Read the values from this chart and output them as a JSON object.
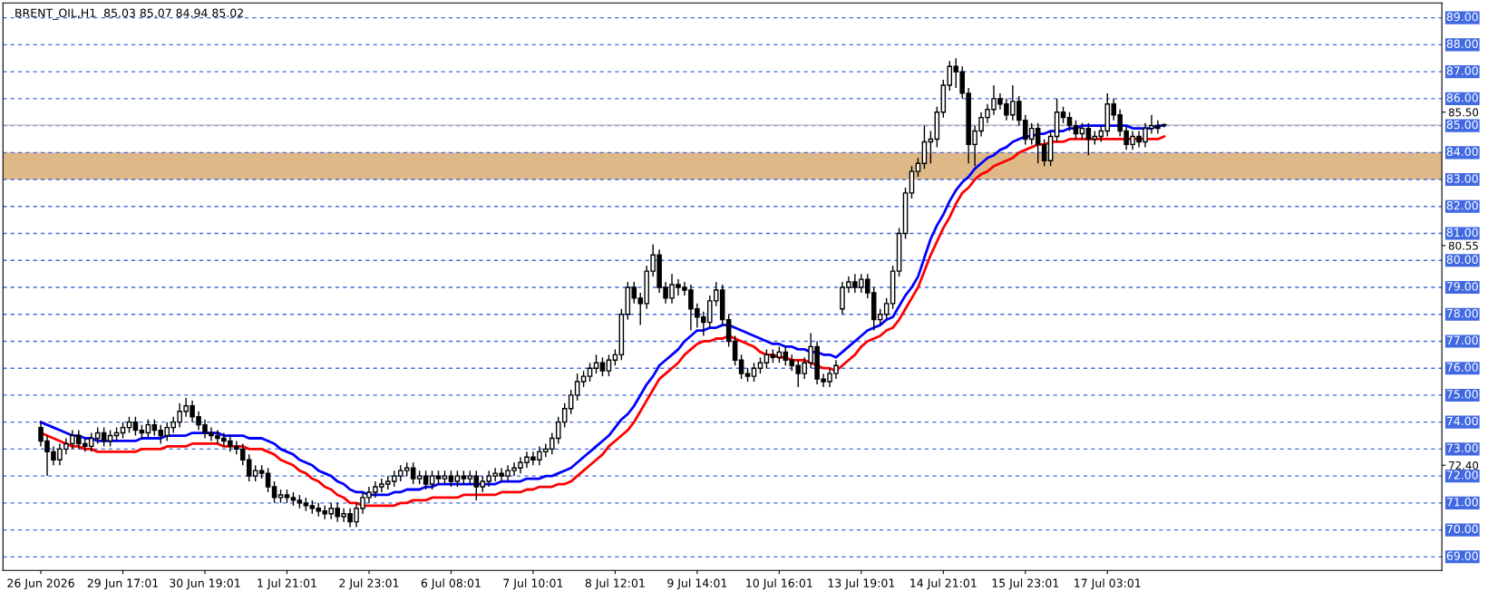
{
  "chart_data": {
    "type": "candlestick",
    "title": "BRENT_OIL,H1  85.03 85.07 84.94 85.02",
    "categories": [
      "26 Jun 2026",
      null,
      null,
      null,
      null,
      null,
      null,
      null,
      null,
      null,
      null,
      null,
      null,
      "29 Jun 17:01",
      null,
      null,
      null,
      null,
      null,
      null,
      null,
      null,
      null,
      null,
      null,
      null,
      "30 Jun 19:01",
      null,
      null,
      null,
      null,
      null,
      null,
      null,
      null,
      null,
      null,
      null,
      null,
      "1 Jul 21:01",
      null,
      null,
      null,
      null,
      null,
      null,
      null,
      null,
      null,
      null,
      null,
      null,
      "2 Jul 23:01",
      null,
      null,
      null,
      null,
      null,
      null,
      null,
      null,
      null,
      null,
      null,
      null,
      "6 Jul 08:01",
      null,
      null,
      null,
      null,
      null,
      null,
      null,
      null,
      null,
      null,
      null,
      null,
      "7 Jul 10:01",
      null,
      null,
      null,
      null,
      null,
      null,
      null,
      null,
      null,
      null,
      null,
      null,
      "8 Jul 12:01",
      null,
      null,
      null,
      null,
      null,
      null,
      null,
      null,
      null,
      null,
      null,
      null,
      "9 Jul 14:01",
      null,
      null,
      null,
      null,
      null,
      null,
      null,
      null,
      null,
      null,
      null,
      null,
      "10 Jul 16:01",
      null,
      null,
      null,
      null,
      null,
      null,
      null,
      null,
      null,
      null,
      null,
      null,
      "13 Jul 19:01",
      null,
      null,
      null,
      null,
      null,
      null,
      null,
      null,
      null,
      null,
      null,
      null,
      "14 Jul 21:01",
      null,
      null,
      null,
      null,
      null,
      null,
      null,
      null,
      null,
      null,
      null,
      null,
      "15 Jul 23:01",
      null,
      null,
      null,
      null,
      null,
      null,
      null,
      null,
      null,
      null,
      null,
      null,
      "17 Jul 03:01",
      null,
      null,
      null,
      null,
      null,
      null,
      null,
      null,
      null
    ],
    "ohlc": [
      [
        73.8,
        74.0,
        73.1,
        73.3
      ],
      [
        73.3,
        73.5,
        72.0,
        72.9
      ],
      [
        72.9,
        73.1,
        72.4,
        72.6
      ],
      [
        72.6,
        73.2,
        72.4,
        73.0
      ],
      [
        73.0,
        73.4,
        72.8,
        73.2
      ],
      [
        73.2,
        73.7,
        73.0,
        73.5
      ],
      [
        73.5,
        73.7,
        73.0,
        73.2
      ],
      [
        73.2,
        73.4,
        72.9,
        73.1
      ],
      [
        73.1,
        73.6,
        72.9,
        73.4
      ],
      [
        73.4,
        73.8,
        73.2,
        73.6
      ],
      [
        73.6,
        73.8,
        73.1,
        73.3
      ],
      [
        73.3,
        73.7,
        73.1,
        73.5
      ],
      [
        73.5,
        73.8,
        73.3,
        73.6
      ],
      [
        73.6,
        74.0,
        73.4,
        73.8
      ],
      [
        73.8,
        74.2,
        73.6,
        74.0
      ],
      [
        74.0,
        74.2,
        73.5,
        73.7
      ],
      [
        73.7,
        73.9,
        73.4,
        73.6
      ],
      [
        73.6,
        74.1,
        73.4,
        73.9
      ],
      [
        73.9,
        74.1,
        73.5,
        73.7
      ],
      [
        73.7,
        73.9,
        73.2,
        73.5
      ],
      [
        73.5,
        74.0,
        73.3,
        73.8
      ],
      [
        73.8,
        74.2,
        73.6,
        74.0
      ],
      [
        74.0,
        74.7,
        73.8,
        74.4
      ],
      [
        74.4,
        74.9,
        74.2,
        74.6
      ],
      [
        74.6,
        74.8,
        74.0,
        74.2
      ],
      [
        74.2,
        74.4,
        73.7,
        73.9
      ],
      [
        73.9,
        74.1,
        73.4,
        73.6
      ],
      [
        73.6,
        73.8,
        73.3,
        73.5
      ],
      [
        73.5,
        73.7,
        73.2,
        73.4
      ],
      [
        73.4,
        73.6,
        73.1,
        73.3
      ],
      [
        73.3,
        73.5,
        72.9,
        73.1
      ],
      [
        73.1,
        73.3,
        72.8,
        73.0
      ],
      [
        73.0,
        73.2,
        72.4,
        72.6
      ],
      [
        72.6,
        72.8,
        71.8,
        72.0
      ],
      [
        72.0,
        72.4,
        71.8,
        72.2
      ],
      [
        72.2,
        72.4,
        71.9,
        72.1
      ],
      [
        72.1,
        72.3,
        71.4,
        71.6
      ],
      [
        71.6,
        71.8,
        71.0,
        71.2
      ],
      [
        71.2,
        71.5,
        71.0,
        71.3
      ],
      [
        71.3,
        71.5,
        71.0,
        71.2
      ],
      [
        71.2,
        71.4,
        70.9,
        71.1
      ],
      [
        71.1,
        71.3,
        70.8,
        71.0
      ],
      [
        71.0,
        71.2,
        70.7,
        70.9
      ],
      [
        70.9,
        71.1,
        70.6,
        70.8
      ],
      [
        70.8,
        71.0,
        70.5,
        70.7
      ],
      [
        70.7,
        70.9,
        70.4,
        70.6
      ],
      [
        70.6,
        71.0,
        70.4,
        70.8
      ],
      [
        70.8,
        71.0,
        70.3,
        70.5
      ],
      [
        70.5,
        70.8,
        70.3,
        70.6
      ],
      [
        70.6,
        70.8,
        70.1,
        70.3
      ],
      [
        70.3,
        71.0,
        70.1,
        70.8
      ],
      [
        70.8,
        71.4,
        70.6,
        71.2
      ],
      [
        71.2,
        71.6,
        71.0,
        71.4
      ],
      [
        71.4,
        71.8,
        71.2,
        71.6
      ],
      [
        71.6,
        71.9,
        71.4,
        71.7
      ],
      [
        71.7,
        72.0,
        71.5,
        71.8
      ],
      [
        71.8,
        72.2,
        71.6,
        72.0
      ],
      [
        72.0,
        72.4,
        71.8,
        72.2
      ],
      [
        72.2,
        72.5,
        72.0,
        72.3
      ],
      [
        72.3,
        72.5,
        71.7,
        71.9
      ],
      [
        71.9,
        72.2,
        71.7,
        72.0
      ],
      [
        72.0,
        72.2,
        71.5,
        71.7
      ],
      [
        71.7,
        72.2,
        71.5,
        72.0
      ],
      [
        72.0,
        72.2,
        71.7,
        71.9
      ],
      [
        71.9,
        72.2,
        71.7,
        72.0
      ],
      [
        72.0,
        72.2,
        71.6,
        71.8
      ],
      [
        71.8,
        72.2,
        71.6,
        72.0
      ],
      [
        72.0,
        72.2,
        71.7,
        71.9
      ],
      [
        71.9,
        72.2,
        71.7,
        72.0
      ],
      [
        72.0,
        72.2,
        71.1,
        71.6
      ],
      [
        71.6,
        72.0,
        71.4,
        71.8
      ],
      [
        71.8,
        72.2,
        71.6,
        72.0
      ],
      [
        72.0,
        72.3,
        71.8,
        72.1
      ],
      [
        72.1,
        72.3,
        71.8,
        72.0
      ],
      [
        72.0,
        72.4,
        71.8,
        72.2
      ],
      [
        72.2,
        72.5,
        72.0,
        72.3
      ],
      [
        72.3,
        72.7,
        72.1,
        72.5
      ],
      [
        72.5,
        72.9,
        72.3,
        72.7
      ],
      [
        72.7,
        72.9,
        72.4,
        72.6
      ],
      [
        72.6,
        73.1,
        72.4,
        72.9
      ],
      [
        72.9,
        73.2,
        72.7,
        73.0
      ],
      [
        73.0,
        73.6,
        72.8,
        73.4
      ],
      [
        73.4,
        74.2,
        73.2,
        74.0
      ],
      [
        74.0,
        74.7,
        73.8,
        74.5
      ],
      [
        74.5,
        75.2,
        74.3,
        75.0
      ],
      [
        75.0,
        75.8,
        74.8,
        75.5
      ],
      [
        75.5,
        75.9,
        75.3,
        75.7
      ],
      [
        75.7,
        76.2,
        75.5,
        76.0
      ],
      [
        76.0,
        76.5,
        75.8,
        76.2
      ],
      [
        76.2,
        76.4,
        75.7,
        75.9
      ],
      [
        75.9,
        76.5,
        75.7,
        76.3
      ],
      [
        76.3,
        76.7,
        76.1,
        76.5
      ],
      [
        76.5,
        78.2,
        76.3,
        78.0
      ],
      [
        78.0,
        79.2,
        77.8,
        79.0
      ],
      [
        79.0,
        79.2,
        78.4,
        78.6
      ],
      [
        78.6,
        78.8,
        77.6,
        78.4
      ],
      [
        78.4,
        79.8,
        78.2,
        79.6
      ],
      [
        79.6,
        80.6,
        79.4,
        80.2
      ],
      [
        80.2,
        80.4,
        78.8,
        79.0
      ],
      [
        79.0,
        79.2,
        78.4,
        78.6
      ],
      [
        78.6,
        79.5,
        78.4,
        79.1
      ],
      [
        79.1,
        79.3,
        78.7,
        79.0
      ],
      [
        79.0,
        79.2,
        78.7,
        78.9
      ],
      [
        78.9,
        79.1,
        77.4,
        78.2
      ],
      [
        78.2,
        78.4,
        77.5,
        77.9
      ],
      [
        77.9,
        78.1,
        77.2,
        77.7
      ],
      [
        77.7,
        78.7,
        77.5,
        78.5
      ],
      [
        78.5,
        79.2,
        78.3,
        78.9
      ],
      [
        78.9,
        79.1,
        77.6,
        77.8
      ],
      [
        77.8,
        78.0,
        76.8,
        77.0
      ],
      [
        77.0,
        77.2,
        76.1,
        76.3
      ],
      [
        76.3,
        76.5,
        75.6,
        75.8
      ],
      [
        75.8,
        76.0,
        75.5,
        75.7
      ],
      [
        75.7,
        76.2,
        75.5,
        76.0
      ],
      [
        76.0,
        76.4,
        75.8,
        76.2
      ],
      [
        76.2,
        76.7,
        76.0,
        76.5
      ],
      [
        76.5,
        76.7,
        76.2,
        76.4
      ],
      [
        76.4,
        76.8,
        76.2,
        76.6
      ],
      [
        76.6,
        76.8,
        76.1,
        76.3
      ],
      [
        76.3,
        76.5,
        75.9,
        76.1
      ],
      [
        76.1,
        76.3,
        75.3,
        75.8
      ],
      [
        75.8,
        76.4,
        75.6,
        76.2
      ],
      [
        76.2,
        77.3,
        76.0,
        76.8
      ],
      [
        76.8,
        77.0,
        75.4,
        75.6
      ],
      [
        75.6,
        75.8,
        75.3,
        75.5
      ],
      [
        75.5,
        76.0,
        75.3,
        75.8
      ],
      [
        75.8,
        76.3,
        75.6,
        76.1
      ],
      [
        78.2,
        79.2,
        78.0,
        79.0
      ],
      [
        79.0,
        79.4,
        78.8,
        79.2
      ],
      [
        79.2,
        79.5,
        78.8,
        79.0
      ],
      [
        79.0,
        79.5,
        78.8,
        79.3
      ],
      [
        79.3,
        79.5,
        78.6,
        78.8
      ],
      [
        78.8,
        79.0,
        77.4,
        77.8
      ],
      [
        77.8,
        78.2,
        77.6,
        78.0
      ],
      [
        78.0,
        78.6,
        77.8,
        78.4
      ],
      [
        78.4,
        79.8,
        78.2,
        79.6
      ],
      [
        79.6,
        81.2,
        79.4,
        81.0
      ],
      [
        81.0,
        82.7,
        80.8,
        82.5
      ],
      [
        82.5,
        83.5,
        82.3,
        83.3
      ],
      [
        83.3,
        83.8,
        83.1,
        83.6
      ],
      [
        83.6,
        85.0,
        83.4,
        84.4
      ],
      [
        84.4,
        84.8,
        83.6,
        84.5
      ],
      [
        84.5,
        85.7,
        84.2,
        85.5
      ],
      [
        85.5,
        86.7,
        85.3,
        86.5
      ],
      [
        86.5,
        87.4,
        86.3,
        87.2
      ],
      [
        87.2,
        87.5,
        86.4,
        87.0
      ],
      [
        87.0,
        87.2,
        86.0,
        86.2
      ],
      [
        86.2,
        86.4,
        83.6,
        84.3
      ],
      [
        84.3,
        85.0,
        83.5,
        84.8
      ],
      [
        84.8,
        85.5,
        84.6,
        85.3
      ],
      [
        85.3,
        85.8,
        85.1,
        85.6
      ],
      [
        85.6,
        86.5,
        85.4,
        86.0
      ],
      [
        86.0,
        86.2,
        85.6,
        85.8
      ],
      [
        85.8,
        86.0,
        85.2,
        85.4
      ],
      [
        85.4,
        86.5,
        85.2,
        85.9
      ],
      [
        85.9,
        86.1,
        85.0,
        85.2
      ],
      [
        85.2,
        85.4,
        84.3,
        84.5
      ],
      [
        84.5,
        85.1,
        84.3,
        84.9
      ],
      [
        84.9,
        85.1,
        83.6,
        84.3
      ],
      [
        84.3,
        84.5,
        83.5,
        83.7
      ],
      [
        83.7,
        84.8,
        83.5,
        84.6
      ],
      [
        84.6,
        86.0,
        84.4,
        85.5
      ],
      [
        85.5,
        85.7,
        85.1,
        85.3
      ],
      [
        85.3,
        85.5,
        84.8,
        85.0
      ],
      [
        85.0,
        85.2,
        84.5,
        84.7
      ],
      [
        84.7,
        85.1,
        84.5,
        84.9
      ],
      [
        84.9,
        85.1,
        83.9,
        84.5
      ],
      [
        84.5,
        84.8,
        84.3,
        84.6
      ],
      [
        84.6,
        85.0,
        84.4,
        84.8
      ],
      [
        84.8,
        86.2,
        84.6,
        85.8
      ],
      [
        85.8,
        86.0,
        85.2,
        85.4
      ],
      [
        85.4,
        85.6,
        84.6,
        84.8
      ],
      [
        84.8,
        85.0,
        84.1,
        84.3
      ],
      [
        84.3,
        84.8,
        84.1,
        84.6
      ],
      [
        84.6,
        84.8,
        84.2,
        84.4
      ],
      [
        84.4,
        85.1,
        84.2,
        84.9
      ],
      [
        84.9,
        85.4,
        84.7,
        85.0
      ],
      [
        85.0,
        85.2,
        84.7,
        84.9
      ],
      [
        85.03,
        85.07,
        84.94,
        85.02
      ]
    ],
    "series": [
      {
        "type": "line",
        "color": "#0000ff",
        "values": [
          74.0,
          73.9,
          73.8,
          73.7,
          73.6,
          73.5,
          73.5,
          73.4,
          73.4,
          73.3,
          73.3,
          73.3,
          73.3,
          73.3,
          73.3,
          73.3,
          73.4,
          73.4,
          73.4,
          73.4,
          73.5,
          73.5,
          73.5,
          73.5,
          73.6,
          73.6,
          73.6,
          73.6,
          73.6,
          73.5,
          73.5,
          73.5,
          73.5,
          73.4,
          73.4,
          73.4,
          73.3,
          73.2,
          73.0,
          72.9,
          72.8,
          72.6,
          72.5,
          72.4,
          72.2,
          72.1,
          72.0,
          71.8,
          71.7,
          71.5,
          71.4,
          71.4,
          71.3,
          71.3,
          71.3,
          71.3,
          71.4,
          71.4,
          71.5,
          71.5,
          71.5,
          71.6,
          71.6,
          71.7,
          71.7,
          71.7,
          71.7,
          71.7,
          71.7,
          71.7,
          71.7,
          71.7,
          71.7,
          71.8,
          71.8,
          71.8,
          71.8,
          71.9,
          71.9,
          71.9,
          72.0,
          72.0,
          72.1,
          72.2,
          72.3,
          72.5,
          72.7,
          72.9,
          73.1,
          73.3,
          73.5,
          73.8,
          74.1,
          74.3,
          74.6,
          75.0,
          75.4,
          75.7,
          76.1,
          76.3,
          76.5,
          76.7,
          77.0,
          77.2,
          77.4,
          77.4,
          77.5,
          77.5,
          77.6,
          77.6,
          77.5,
          77.4,
          77.3,
          77.2,
          77.1,
          77.0,
          76.9,
          76.9,
          76.8,
          76.8,
          76.7,
          76.7,
          76.6,
          76.6,
          76.5,
          76.5,
          76.4,
          76.6,
          76.8,
          77.0,
          77.2,
          77.4,
          77.5,
          77.6,
          77.8,
          77.9,
          78.3,
          78.7,
          79.0,
          79.4,
          80.1,
          80.8,
          81.3,
          81.7,
          82.2,
          82.6,
          82.9,
          83.1,
          83.4,
          83.6,
          83.8,
          83.9,
          84.1,
          84.2,
          84.4,
          84.5,
          84.6,
          84.6,
          84.7,
          84.7,
          84.8,
          84.8,
          84.8,
          84.9,
          84.9,
          85.0,
          85.0,
          85.0,
          85.0,
          85.0,
          85.0,
          85.0,
          85.0,
          84.9,
          84.9,
          84.9,
          84.9,
          85.0,
          85.0
        ]
      },
      {
        "type": "line",
        "color": "#ff0000",
        "values": [
          73.6,
          73.5,
          73.4,
          73.3,
          73.2,
          73.1,
          73.1,
          73.0,
          73.0,
          72.9,
          72.9,
          72.9,
          72.9,
          72.9,
          72.9,
          72.9,
          73.0,
          73.0,
          73.0,
          73.0,
          73.1,
          73.1,
          73.1,
          73.1,
          73.2,
          73.2,
          73.2,
          73.2,
          73.2,
          73.1,
          73.1,
          73.1,
          73.1,
          73.0,
          73.0,
          73.0,
          72.9,
          72.8,
          72.6,
          72.5,
          72.4,
          72.2,
          72.1,
          71.9,
          71.8,
          71.6,
          71.5,
          71.3,
          71.2,
          71.0,
          71.0,
          70.9,
          70.9,
          70.9,
          70.9,
          70.9,
          70.9,
          71.0,
          71.0,
          71.1,
          71.1,
          71.1,
          71.2,
          71.2,
          71.2,
          71.2,
          71.2,
          71.3,
          71.3,
          71.3,
          71.3,
          71.3,
          71.3,
          71.4,
          71.4,
          71.4,
          71.4,
          71.5,
          71.5,
          71.6,
          71.6,
          71.6,
          71.7,
          71.7,
          71.8,
          72.0,
          72.2,
          72.4,
          72.6,
          72.8,
          73.1,
          73.3,
          73.5,
          73.7,
          74.0,
          74.4,
          74.8,
          75.2,
          75.6,
          75.8,
          76.0,
          76.2,
          76.5,
          76.7,
          76.9,
          77.0,
          77.0,
          77.1,
          77.1,
          77.2,
          77.1,
          77.0,
          76.9,
          76.8,
          76.6,
          76.5,
          76.5,
          76.4,
          76.4,
          76.3,
          76.3,
          76.3,
          76.2,
          76.1,
          76.0,
          76.0,
          75.9,
          76.1,
          76.3,
          76.5,
          76.8,
          77.0,
          77.1,
          77.2,
          77.4,
          77.5,
          77.8,
          78.2,
          78.6,
          79.0,
          79.6,
          80.2,
          80.7,
          81.2,
          81.6,
          82.1,
          82.5,
          82.7,
          83.0,
          83.2,
          83.3,
          83.5,
          83.6,
          83.7,
          83.8,
          84.0,
          84.1,
          84.2,
          84.3,
          84.3,
          84.4,
          84.4,
          84.4,
          84.5,
          84.5,
          84.5,
          84.5,
          84.5,
          84.5,
          84.5,
          84.5,
          84.5,
          84.5,
          84.5,
          84.5,
          84.5,
          84.5,
          84.5,
          84.6
        ]
      }
    ],
    "ylim": [
      68.5,
      89.55
    ],
    "yticks": [
      {
        "value": 85.5,
        "label": "85.50"
      },
      {
        "value": 80.55,
        "label": "80.55"
      },
      {
        "value": 72.4,
        "label": "72.40"
      }
    ],
    "ref_lines": [
      {
        "axis": "y",
        "value": 89,
        "label": "89.00",
        "color": "#4169e1",
        "line_style": "dashed"
      },
      {
        "axis": "y",
        "value": 88,
        "label": "88.00",
        "color": "#4169e1",
        "line_style": "dashed"
      },
      {
        "axis": "y",
        "value": 87,
        "label": "87.00",
        "color": "#4169e1",
        "line_style": "dashed"
      },
      {
        "axis": "y",
        "value": 86,
        "label": "86.00",
        "color": "#4169e1",
        "line_style": "dashed"
      },
      {
        "axis": "y",
        "value": 85,
        "label": "85.00",
        "color": "#4169e1",
        "line_style": "dashed"
      },
      {
        "axis": "y",
        "value": 84,
        "label": "84.00",
        "color": "#4169e1",
        "line_style": "dashed"
      },
      {
        "axis": "y",
        "value": 83,
        "label": "83.00",
        "color": "#4169e1",
        "line_style": "dashed"
      },
      {
        "axis": "y",
        "value": 82,
        "label": "82.00",
        "color": "#4169e1",
        "line_style": "dashed"
      },
      {
        "axis": "y",
        "value": 81,
        "label": "81.00",
        "color": "#4169e1",
        "line_style": "dashed"
      },
      {
        "axis": "y",
        "value": 80,
        "label": "80.00",
        "color": "#4169e1",
        "line_style": "dashed"
      },
      {
        "axis": "y",
        "value": 79,
        "label": "79.00",
        "color": "#4169e1",
        "line_style": "dashed"
      },
      {
        "axis": "y",
        "value": 78,
        "label": "78.00",
        "color": "#4169e1",
        "line_style": "dashed"
      },
      {
        "axis": "y",
        "value": 77,
        "label": "77.00",
        "color": "#4169e1",
        "line_style": "dashed"
      },
      {
        "axis": "y",
        "value": 76,
        "label": "76.00",
        "color": "#4169e1",
        "line_style": "dashed"
      },
      {
        "axis": "y",
        "value": 75,
        "label": "75.00",
        "color": "#4169e1",
        "line_style": "dashed"
      },
      {
        "axis": "y",
        "value": 74,
        "label": "74.00",
        "color": "#4169e1",
        "line_style": "dashed"
      },
      {
        "axis": "y",
        "value": 73,
        "label": "73.00",
        "color": "#4169e1",
        "line_style": "dashed"
      },
      {
        "axis": "y",
        "value": 72,
        "label": "72.00",
        "color": "#4169e1",
        "line_style": "dashed"
      },
      {
        "axis": "y",
        "value": 71,
        "label": "71.00",
        "color": "#4169e1",
        "line_style": "dashed"
      },
      {
        "axis": "y",
        "value": 70,
        "label": "70.00",
        "color": "#4169e1",
        "line_style": "dashed"
      },
      {
        "axis": "y",
        "value": 69,
        "label": "69.00",
        "color": "#4169e1",
        "line_style": "dashed"
      },
      {
        "axis": "y",
        "value": 85.02,
        "color": "#c0c0c0",
        "line_style": "solid"
      }
    ],
    "bands": [
      {
        "axis": "y",
        "from": 83,
        "to": 84,
        "color": "#deb887"
      }
    ],
    "grid": false,
    "legend": false
  }
}
